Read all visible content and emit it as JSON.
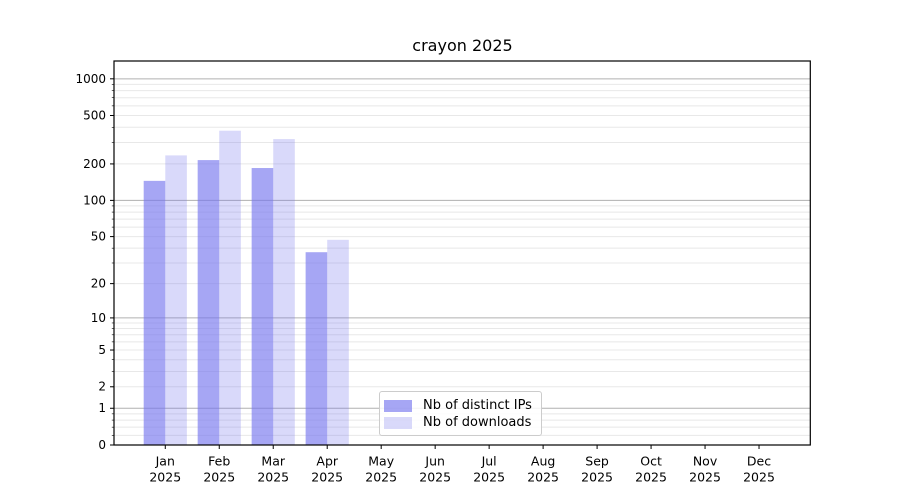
{
  "figure": {
    "title": "crayon 2025"
  },
  "chart_data": {
    "type": "bar",
    "title": "crayon 2025",
    "categories": [
      "Jan",
      "Feb",
      "Mar",
      "Apr",
      "May",
      "Jun",
      "Jul",
      "Aug",
      "Sep",
      "Oct",
      "Nov",
      "Dec"
    ],
    "category_year": "2025",
    "series": [
      {
        "name": "Nb of distinct IPs",
        "color": "rgba(119,119,238,0.65)",
        "values": [
          145,
          215,
          185,
          37,
          null,
          null,
          null,
          null,
          null,
          null,
          null,
          null
        ]
      },
      {
        "name": "Nb of downloads",
        "color": "rgba(119,119,238,0.28)",
        "values": [
          235,
          375,
          320,
          47,
          null,
          null,
          null,
          null,
          null,
          null,
          null,
          null
        ]
      }
    ],
    "yscale": "log1p",
    "yticks": [
      0,
      1,
      2,
      5,
      10,
      20,
      50,
      100,
      200,
      500,
      1000
    ],
    "ylim": [
      0,
      1400
    ],
    "xlabel": "",
    "ylabel": "",
    "grid": true,
    "legend_position": "inside-bottom-center",
    "colors": {
      "major_grid": "#b0b0b0",
      "minor_grid": "#e8e8e8",
      "spine": "#000000",
      "text": "#000000"
    }
  }
}
